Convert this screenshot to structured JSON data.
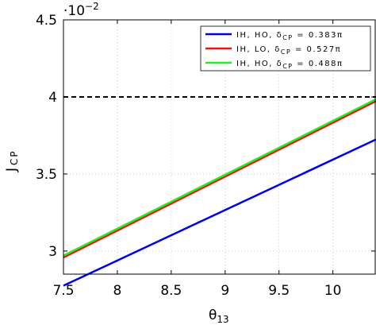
{
  "chart_data": {
    "type": "line",
    "x_range": [
      7.5,
      10.4
    ],
    "y_range": [
      2.85,
      4.5
    ],
    "y_multiplier_label": "·10",
    "y_multiplier_exp": "−2",
    "xlabel": "θ",
    "xlabel_sub": "13",
    "ylabel": "J",
    "ylabel_sub": "CP",
    "x_ticks": [
      {
        "value": 7.5,
        "label": "7.5"
      },
      {
        "value": 8.0,
        "label": "8"
      },
      {
        "value": 8.5,
        "label": "8.5"
      },
      {
        "value": 9.0,
        "label": "9"
      },
      {
        "value": 9.5,
        "label": "9.5"
      },
      {
        "value": 10.0,
        "label": "10"
      }
    ],
    "y_ticks": [
      {
        "value": 3.0,
        "label": "3"
      },
      {
        "value": 3.5,
        "label": "3.5"
      },
      {
        "value": 4.0,
        "label": "4"
      },
      {
        "value": 4.5,
        "label": "4.5"
      }
    ],
    "grid": true,
    "legend_position": "top-right",
    "series": [
      {
        "name": "IH, HO, δCP = 0.383π",
        "legend_prefix": "IH, HO, δ",
        "legend_sub": "CP",
        "legend_suffix": " = 0.383π",
        "color": "#0000ee",
        "x": [
          7.5,
          10.4
        ],
        "y": [
          2.775,
          3.724
        ]
      },
      {
        "name": "IH, LO, δCP = 0.527π",
        "legend_prefix": "IH, LO, δ",
        "legend_sub": "CP",
        "legend_suffix": " = 0.527π",
        "color": "#ee1111",
        "x": [
          7.5,
          10.4
        ],
        "y": [
          2.958,
          3.973
        ]
      },
      {
        "name": "IH, HO, δCP = 0.488π",
        "legend_prefix": "IH, HO, δ",
        "legend_sub": "CP",
        "legend_suffix": " = 0.488π",
        "color": "#22ee22",
        "x": [
          7.5,
          10.4
        ],
        "y": [
          2.97,
          3.985
        ]
      }
    ],
    "reference_line": {
      "y": 4.0,
      "style": "dashed",
      "color": "#000000"
    }
  }
}
